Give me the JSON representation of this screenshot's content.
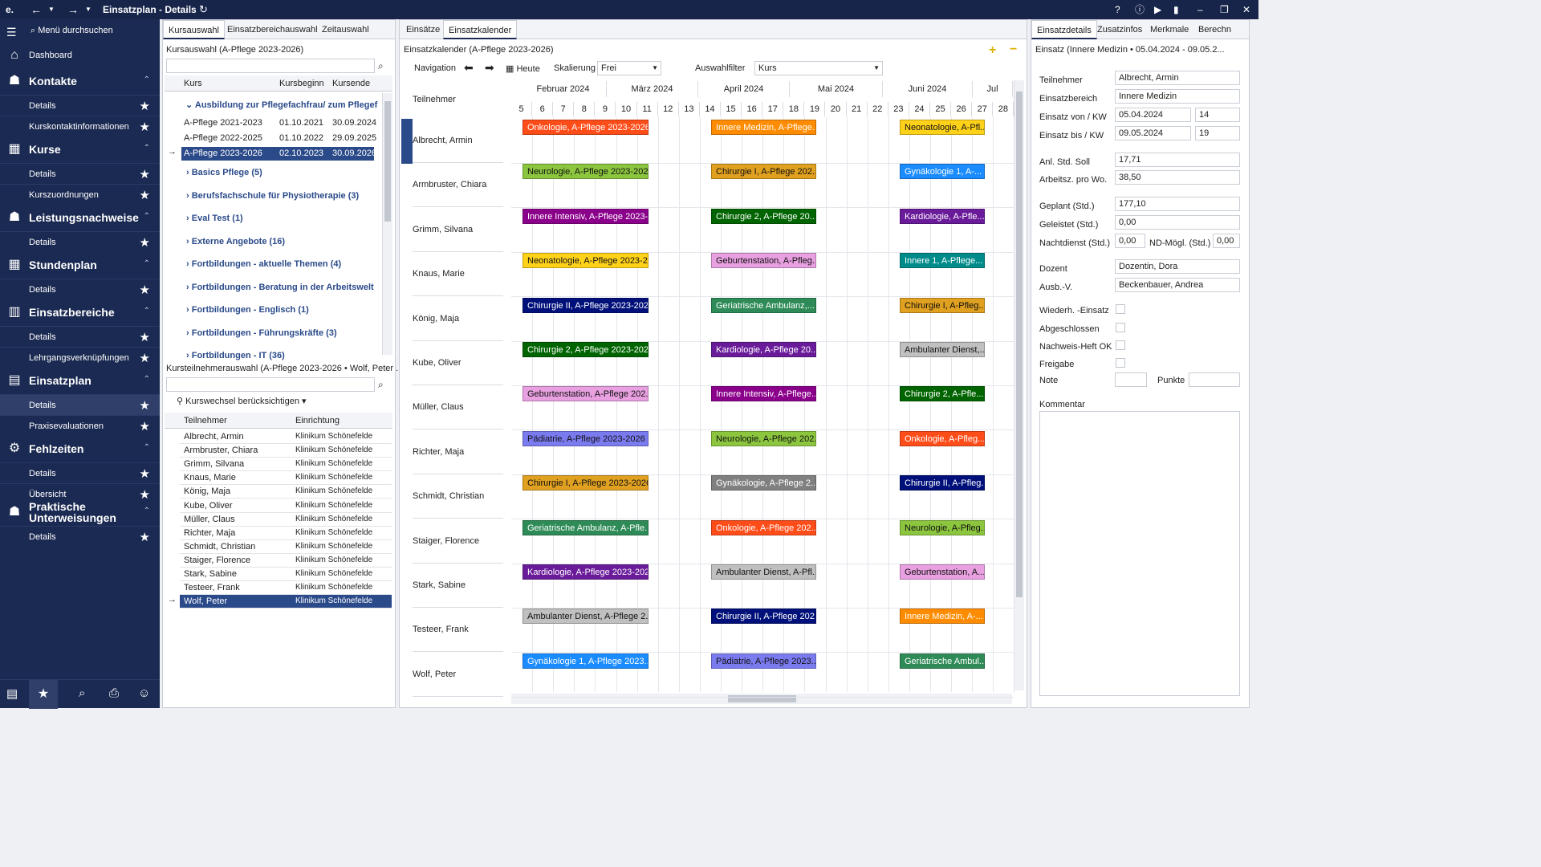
{
  "app": {
    "title": "Einsatzplan - Details",
    "logo": "e."
  },
  "titlebar": {
    "icons": [
      "back-icon",
      "forward-icon",
      "refresh-icon",
      "help-icon",
      "info-icon",
      "play-icon",
      "signal-icon",
      "minimize-icon",
      "restore-icon",
      "close-icon"
    ]
  },
  "sidebar": {
    "search": "Menü durchsuchen",
    "dashboard": "Dashboard",
    "sections": [
      {
        "label": "Kontakte",
        "items": [
          "Details",
          "Kurskontaktinformationen"
        ]
      },
      {
        "label": "Kurse",
        "items": [
          "Details",
          "Kurszuordnungen"
        ]
      },
      {
        "label": "Leistungsnachweise",
        "items": [
          "Details"
        ]
      },
      {
        "label": "Stundenplan",
        "items": [
          "Details"
        ]
      },
      {
        "label": "Einsatzbereiche",
        "items": [
          "Details",
          "Lehrgangsverknüpfungen"
        ]
      },
      {
        "label": "Einsatzplan",
        "items": [
          "Details",
          "Praxisevaluationen"
        ]
      },
      {
        "label": "Fehlzeiten",
        "items": [
          "Details",
          "Übersicht"
        ]
      },
      {
        "label": "Praktische Unterweisungen",
        "items": [
          "Details"
        ]
      }
    ]
  },
  "left_panel": {
    "tabs": [
      "Kursauswahl",
      "Einsatzbereichauswahl",
      "Zeitauswahl"
    ],
    "kurs_title": "Kursauswahl (A-Pflege 2023-2026)",
    "kurs_cols": [
      "Kurs",
      "Kursbeginn",
      "Kursende"
    ],
    "group_open": "Ausbildung zur Pflegefachfrau/ zum Pflegef",
    "kurs_rows": [
      [
        "A-Pflege 2021-2023",
        "01.10.2021",
        "30.09.2024"
      ],
      [
        "A-Pflege 2022-2025",
        "01.10.2022",
        "29.09.2025"
      ],
      [
        "A-Pflege 2023-2026",
        "02.10.2023",
        "30.09.2026"
      ]
    ],
    "groups": [
      "Basics Pflege (5)",
      "Berufsfachschule für Physiotherapie (3)",
      "Eval Test (1)",
      "Externe Angebote (16)",
      "Fortbildungen - aktuelle Themen (4)",
      "Fortbildungen - Beratung in der Arbeitswelt",
      "Fortbildungen - Englisch (1)",
      "Fortbildungen - Führungskräfte (3)",
      "Fortbildungen - IT (36)"
    ],
    "tn_title": "Kursteilnehmerauswahl (A-Pflege 2023-2026 • Wolf, Peter .",
    "kurswechsel": "Kurswechsel berücksichtigen",
    "tn_cols": [
      "Teilnehmer",
      "Einrichtung"
    ],
    "tn_rows": [
      "Albrecht, Armin",
      "Armbruster, Chiara",
      "Grimm, Silvana",
      "Knaus, Marie",
      "König, Maja",
      "Kube, Oliver",
      "Müller, Claus",
      "Richter, Maja",
      "Schmidt, Christian",
      "Staiger, Florence",
      "Stark, Sabine",
      "Testeer, Frank",
      "Wolf, Peter"
    ],
    "einrichtung": "Klinikum Schönefelde"
  },
  "calendar": {
    "tabs": [
      "Einsätze",
      "Einsatzkalender"
    ],
    "title": "Einsatzkalender (A-Pflege 2023-2026)",
    "nav": "Navigation",
    "heute": "Heute",
    "skalierung": "Skalierung",
    "skal_val": "Frei",
    "auswahlfilter": "Auswahlfilter",
    "filter_val": "Kurs",
    "col_header": "Teilnehmer",
    "months": [
      "Februar 2024",
      "März 2024",
      "April 2024",
      "Mai 2024",
      "Juni 2024",
      "Jul"
    ],
    "weeks": [
      "5",
      "6",
      "7",
      "8",
      "9",
      "10",
      "11",
      "12",
      "13",
      "14",
      "15",
      "16",
      "17",
      "18",
      "19",
      "20",
      "21",
      "22",
      "23",
      "24",
      "25",
      "26",
      "27",
      "28"
    ],
    "rows": [
      {
        "name": "Albrecht, Armin",
        "ev": [
          [
            "Onkologie, A-Pflege 2023-2026",
            "#ff4d1a"
          ],
          [
            "Innere Medizin, A-Pflege...",
            "#ff8c00"
          ],
          [
            "Neonatologie, A-Pfl...",
            "#ffd21a"
          ]
        ]
      },
      {
        "name": "Armbruster, Chiara",
        "ev": [
          [
            "Neurologie, A-Pflege 2023-2026",
            "#8cc63f"
          ],
          [
            "Chirurgie I, A-Pflege 202...",
            "#e0a020"
          ],
          [
            "Gynäkologie 1, A-...",
            "#1a8cff"
          ]
        ]
      },
      {
        "name": "Grimm, Silvana",
        "ev": [
          [
            "Innere Intensiv, A-Pflege 2023-...",
            "#8b008b"
          ],
          [
            "Chirurgie 2, A-Pflege 20...",
            "#006400"
          ],
          [
            "Kardiologie, A-Pfle...",
            "#6a1b9a"
          ]
        ]
      },
      {
        "name": "Knaus, Marie",
        "ev": [
          [
            "Neonatologie, A-Pflege 2023-2...",
            "#ffd21a"
          ],
          [
            "Geburtenstation, A-Pfleg...",
            "#e8a0e0"
          ],
          [
            "Innere 1, A-Pflege...",
            "#008b8b"
          ]
        ]
      },
      {
        "name": "König, Maja",
        "ev": [
          [
            "Chirurgie II, A-Pflege 2023-2026",
            "#00107a"
          ],
          [
            "Geriatrische Ambulanz,...",
            "#2e8b57"
          ],
          [
            "Chirurgie I, A-Pfleg...",
            "#e0a020"
          ]
        ]
      },
      {
        "name": "Kube, Oliver",
        "ev": [
          [
            "Chirurgie 2, A-Pflege 2023-2026",
            "#006400"
          ],
          [
            "Kardiologie, A-Pflege 20...",
            "#6a1b9a"
          ],
          [
            "Ambulanter Dienst,...",
            "#c0c0c0"
          ]
        ]
      },
      {
        "name": "Müller, Claus",
        "ev": [
          [
            "Geburtenstation, A-Pflege 202...",
            "#e8a0e0"
          ],
          [
            "Innere Intensiv, A-Pflege...",
            "#8b008b"
          ],
          [
            "Chirurgie 2, A-Pfle...",
            "#006400"
          ]
        ]
      },
      {
        "name": "Richter, Maja",
        "ev": [
          [
            "Pädiatrie, A-Pflege 2023-2026",
            "#7b7bf0"
          ],
          [
            "Neurologie, A-Pflege 202...",
            "#8cc63f"
          ],
          [
            "Onkologie, A-Pfleg...",
            "#ff4d1a"
          ]
        ]
      },
      {
        "name": "Schmidt, Christian",
        "ev": [
          [
            "Chirurgie I, A-Pflege 2023-2026",
            "#e0a020"
          ],
          [
            "Gynäkologie, A-Pflege 2...",
            "#808080"
          ],
          [
            "Chirurgie II, A-Pfleg...",
            "#00107a"
          ]
        ]
      },
      {
        "name": "Staiger, Florence",
        "ev": [
          [
            "Geriatrische Ambulanz, A-Pfle...",
            "#2e8b57"
          ],
          [
            "Onkologie, A-Pflege 202...",
            "#ff4d1a"
          ],
          [
            "Neurologie, A-Pfleg...",
            "#8cc63f"
          ]
        ]
      },
      {
        "name": "Stark, Sabine",
        "ev": [
          [
            "Kardiologie, A-Pflege 2023-2026",
            "#6a1b9a"
          ],
          [
            "Ambulanter Dienst, A-Pfl...",
            "#c0c0c0"
          ],
          [
            "Geburtenstation, A...",
            "#e8a0e0"
          ]
        ]
      },
      {
        "name": "Testeer, Frank",
        "ev": [
          [
            "Ambulanter Dienst, A-Pflege 2...",
            "#c0c0c0"
          ],
          [
            "Chirurgie II, A-Pflege 202...",
            "#00107a"
          ],
          [
            "Innere Medizin, A-...",
            "#ff8c00"
          ]
        ]
      },
      {
        "name": "Wolf, Peter",
        "ev": [
          [
            "Gynäkologie 1, A-Pflege 2023...",
            "#1a8cff"
          ],
          [
            "Pädiatrie, A-Pflege 2023...",
            "#7b7bf0"
          ],
          [
            "Geriatrische Ambul...",
            "#2e8b57"
          ]
        ]
      }
    ]
  },
  "details": {
    "tabs": [
      "Einsatzdetails",
      "Zusatzinfos",
      "Merkmale",
      "Berechn"
    ],
    "title": "Einsatz (Innere Medizin • 05.04.2024 - 09.05.2...",
    "teilnehmer_l": "Teilnehmer",
    "teilnehmer": "Albrecht, Armin",
    "bereich_l": "Einsatzbereich",
    "bereich": "Innere Medizin",
    "von_l": "Einsatz von / KW",
    "von": "05.04.2024",
    "von_kw": "14",
    "bis_l": "Einsatz bis / KW",
    "bis": "09.05.2024",
    "bis_kw": "19",
    "soll_l": "Anl. Std. Soll",
    "soll": "17,71",
    "az_l": "Arbeitsz. pro Wo.",
    "az": "38,50",
    "geplant_l": "Geplant (Std.)",
    "geplant": "177,10",
    "geleistet_l": "Geleistet (Std.)",
    "geleistet": "0,00",
    "nacht_l": "Nachtdienst (Std.)",
    "nacht": "0,00",
    "nd_l": "ND-Mögl. (Std.)",
    "nd": "0,00",
    "dozent_l": "Dozent",
    "dozent": "Dozentin, Dora",
    "ausb_l": "Ausb.-V.",
    "ausb": "Beckenbauer, Andrea",
    "wied_l": "Wiederh. -Einsatz",
    "abg_l": "Abgeschlossen",
    "nachweis_l": "Nachweis-Heft OK",
    "freigabe_l": "Freigabe",
    "note_l": "Note",
    "punkte_l": "Punkte",
    "kommentar_l": "Kommentar"
  }
}
